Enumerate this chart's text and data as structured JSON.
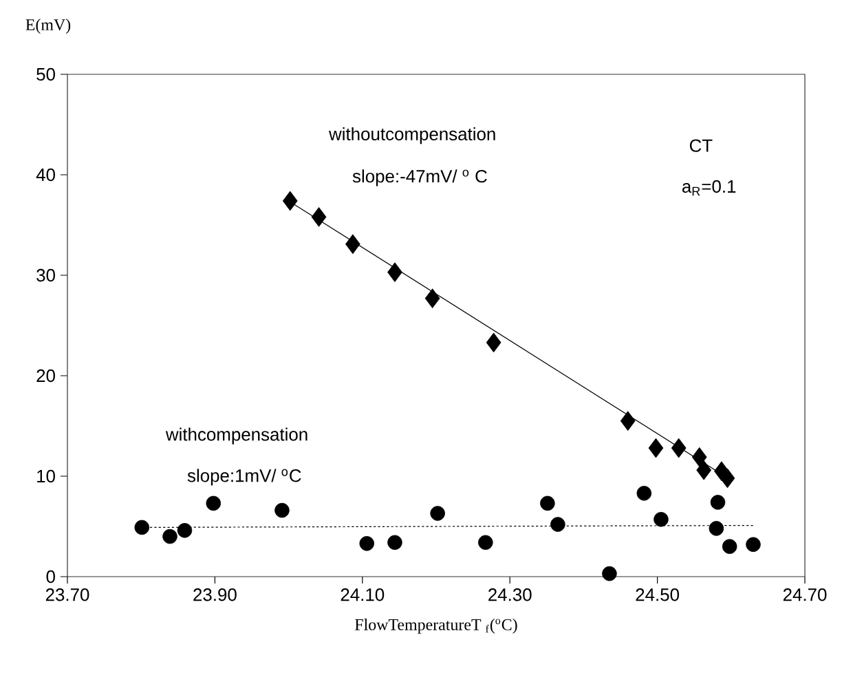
{
  "chart_data": {
    "type": "scatter",
    "xlabel": "FlowTemperatureT $_{f}$($^{o}$C)",
    "ylabel": "E(mV)",
    "xlim": [
      23.7,
      24.7
    ],
    "xticks": [
      {
        "value": 23.7,
        "label": "23.70"
      },
      {
        "value": 23.9,
        "label": "23.90"
      },
      {
        "value": 24.1,
        "label": "24.10"
      },
      {
        "value": 24.3,
        "label": "24.30"
      },
      {
        "value": 24.5,
        "label": "24.50"
      },
      {
        "value": 24.7,
        "label": "24.70"
      }
    ],
    "ylim": [
      0,
      50
    ],
    "yticks": [
      0,
      10,
      20,
      30,
      40,
      50
    ],
    "annotations": [
      "withoutcompensation",
      "slope:-47mV/   $^{o}$ C",
      "CT",
      "a$_{R}$=0.1",
      "withcompensation",
      "slope:1mV/   $^{o}$C"
    ],
    "series": [
      {
        "marker": "diamond",
        "color": "#000000",
        "x": [
          24.002,
          24.041,
          24.087,
          24.144,
          24.195,
          24.278,
          24.46,
          24.498,
          24.529,
          24.557,
          24.563,
          24.587,
          24.595
        ],
        "values": [
          37.4,
          35.8,
          33.1,
          30.3,
          27.7,
          23.3,
          15.5,
          12.8,
          12.8,
          11.9,
          10.6,
          10.5,
          9.8
        ]
      },
      {
        "type": "line",
        "line_style": "solid",
        "marker": "none",
        "color": "#000000",
        "x": [
          24.0,
          24.6
        ],
        "values": [
          37.4,
          9.6
        ]
      },
      {
        "marker": "circle",
        "color": "#000000",
        "x": [
          23.801,
          23.839,
          23.859,
          23.898,
          23.991,
          24.106,
          24.144,
          24.202,
          24.267,
          24.351,
          24.365,
          24.435,
          24.482,
          24.505,
          24.582,
          24.58,
          24.598,
          24.63
        ],
        "values": [
          4.9,
          4.0,
          4.6,
          7.3,
          6.6,
          3.3,
          3.4,
          6.3,
          3.4,
          7.3,
          5.2,
          0.3,
          8.3,
          5.7,
          7.4,
          4.8,
          3.0,
          3.2
        ]
      },
      {
        "type": "line",
        "line_style": "dotted",
        "marker": "none",
        "color": "#000000",
        "x": [
          23.8,
          24.63
        ],
        "values": [
          4.9,
          5.1
        ]
      }
    ]
  }
}
